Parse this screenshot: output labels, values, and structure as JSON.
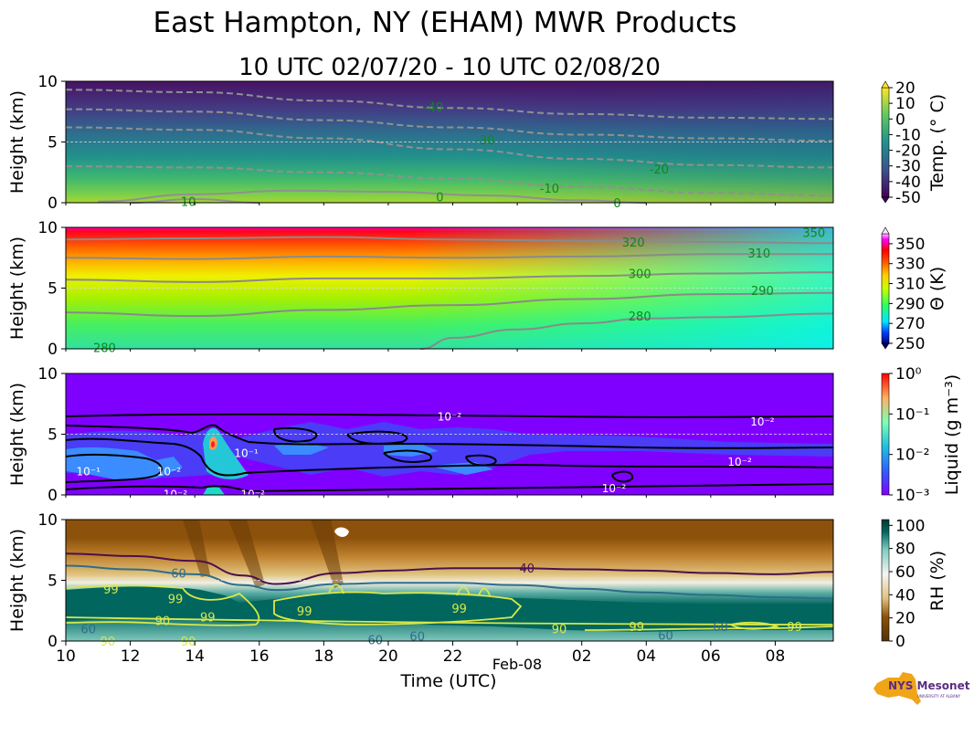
{
  "figure": {
    "title": "East Hampton, NY (EHAM) MWR Products",
    "subtitle": "10 UTC 02/07/20 - 10 UTC 02/08/20",
    "xlabel": "Time (UTC)",
    "date_marker": "Feb-08",
    "logo_text": "NYS Mesonet",
    "logo_subtext": "UNIVERSITY AT ALBANY"
  },
  "chart_data": [
    {
      "type": "heatmap",
      "name": "temperature",
      "ylabel": "Height (km)",
      "ylim": [
        0,
        10
      ],
      "yticks": [
        "0",
        "5",
        "10"
      ],
      "x_range_hours": [
        10,
        33.8
      ],
      "xticks": [
        "10",
        "12",
        "14",
        "16",
        "18",
        "20",
        "22",
        "",
        "02",
        "04",
        "06",
        "08"
      ],
      "xtick_hours": [
        10,
        12,
        14,
        16,
        18,
        20,
        22,
        24,
        26,
        28,
        30,
        32
      ],
      "colorbar": {
        "label": "Temp. (° C)",
        "ticks": [
          "20",
          "10",
          "0",
          "-10",
          "-20",
          "-30",
          "-40",
          "-50"
        ],
        "range": [
          -50,
          20
        ]
      },
      "contour_labels": [
        {
          "text": "-40",
          "t": 21.4,
          "h": 7.9
        },
        {
          "text": "-30",
          "t": 23.0,
          "h": 5.2
        },
        {
          "text": "-20",
          "t": 28.4,
          "h": 2.8
        },
        {
          "text": "-10",
          "t": 25.0,
          "h": 1.2
        },
        {
          "text": "0",
          "t": 21.6,
          "h": 0.5
        },
        {
          "text": "0",
          "t": 27.1,
          "h": 0.0
        },
        {
          "text": "10",
          "t": 13.8,
          "h": 0.1
        }
      ],
      "contours": [
        {
          "value": -40,
          "t": [
            10,
            14,
            18,
            22,
            26,
            30,
            33.8
          ],
          "h": [
            9.3,
            9.1,
            8.4,
            7.8,
            7.3,
            7.0,
            6.9
          ]
        },
        {
          "value": -30,
          "t": [
            10,
            14,
            18,
            22,
            26,
            30,
            33.8
          ],
          "h": [
            7.7,
            7.5,
            6.8,
            6.2,
            5.6,
            5.3,
            5.1
          ]
        },
        {
          "value": -20,
          "t": [
            10,
            14,
            18,
            22,
            26,
            30,
            33.8
          ],
          "h": [
            6.2,
            6.0,
            5.3,
            4.4,
            3.6,
            3.1,
            2.9
          ]
        },
        {
          "value": -10,
          "t": [
            10,
            14,
            18,
            22,
            26,
            30,
            33.8
          ],
          "h": [
            3.0,
            2.9,
            2.5,
            2.0,
            1.3,
            0.8,
            0.6
          ]
        },
        {
          "value": 0,
          "t": [
            11,
            14,
            17,
            20,
            23,
            26,
            28
          ],
          "h": [
            0.1,
            0.7,
            1.0,
            0.9,
            0.6,
            0.2,
            0.0
          ]
        },
        {
          "value": 10,
          "t": [
            12,
            14,
            16
          ],
          "h": [
            0.0,
            0.3,
            0.0
          ]
        }
      ]
    },
    {
      "type": "heatmap",
      "name": "potential_temperature",
      "ylabel": "Height (km)",
      "ylim": [
        0,
        10
      ],
      "yticks": [
        "0",
        "5",
        "10"
      ],
      "colorbar": {
        "label": "Θ (K)",
        "ticks": [
          "350",
          "330",
          "310",
          "290",
          "270",
          "250"
        ],
        "range": [
          250,
          360
        ]
      },
      "contour_labels": [
        {
          "text": "350",
          "t": 33.2,
          "h": 9.6
        },
        {
          "text": "320",
          "t": 27.6,
          "h": 8.8
        },
        {
          "text": "310",
          "t": 31.5,
          "h": 7.9
        },
        {
          "text": "300",
          "t": 27.8,
          "h": 6.2
        },
        {
          "text": "290",
          "t": 31.6,
          "h": 4.8
        },
        {
          "text": "280",
          "t": 27.8,
          "h": 2.7
        },
        {
          "text": "280",
          "t": 11.2,
          "h": 0.1
        }
      ],
      "contours": [
        {
          "value": 320,
          "t": [
            10,
            14,
            18,
            22,
            26,
            30,
            33.8
          ],
          "h": [
            9.0,
            9.1,
            9.2,
            9.0,
            8.9,
            8.8,
            8.7
          ]
        },
        {
          "value": 310,
          "t": [
            10,
            14,
            18,
            22,
            26,
            30,
            33.8
          ],
          "h": [
            7.5,
            7.4,
            7.6,
            7.5,
            7.6,
            7.8,
            7.8
          ]
        },
        {
          "value": 300,
          "t": [
            10,
            14,
            18,
            22,
            26,
            30,
            33.8
          ],
          "h": [
            5.7,
            5.5,
            5.8,
            5.8,
            6.0,
            6.2,
            6.3
          ]
        },
        {
          "value": 290,
          "t": [
            10,
            14,
            18,
            22,
            26,
            30,
            33.8
          ],
          "h": [
            3.0,
            2.7,
            3.2,
            3.6,
            4.1,
            4.5,
            4.6
          ]
        },
        {
          "value": 280,
          "t": [
            21,
            22,
            24,
            26,
            28,
            30,
            33.8
          ],
          "h": [
            0.0,
            0.9,
            1.6,
            2.1,
            2.5,
            2.6,
            2.9
          ]
        }
      ]
    },
    {
      "type": "heatmap",
      "name": "liquid_water",
      "ylabel": "Height (km)",
      "ylim": [
        0,
        10
      ],
      "yticks": [
        "0",
        "5",
        "10"
      ],
      "colorbar": {
        "label": "Liquid (g m⁻³)",
        "ticks": [
          "10⁰",
          "10⁻¹",
          "10⁻²",
          "10⁻³"
        ],
        "range": [
          -3,
          0
        ],
        "scale": "log"
      },
      "contour_labels": [
        {
          "text": "10⁻²",
          "t": 21.9,
          "h": 6.5
        },
        {
          "text": "10⁻²",
          "t": 31.6,
          "h": 6.1
        },
        {
          "text": "10⁻²",
          "t": 30.9,
          "h": 2.8
        },
        {
          "text": "10⁻²",
          "t": 27.0,
          "h": 0.6
        },
        {
          "text": "10⁻¹",
          "t": 10.7,
          "h": 2.0
        },
        {
          "text": "10⁻²",
          "t": 13.2,
          "h": 2.0
        },
        {
          "text": "10⁻¹",
          "t": 15.6,
          "h": 3.5
        },
        {
          "text": "10⁻²",
          "t": 13.4,
          "h": 0.1
        },
        {
          "text": "10⁻²",
          "t": 15.8,
          "h": 0.1
        }
      ]
    },
    {
      "type": "heatmap",
      "name": "relative_humidity",
      "ylabel": "Height (km)",
      "ylim": [
        0,
        10
      ],
      "yticks": [
        "0",
        "5",
        "10"
      ],
      "colorbar": {
        "label": "RH (%)",
        "ticks": [
          "100",
          "80",
          "60",
          "40",
          "20",
          "0"
        ],
        "range": [
          0,
          105
        ]
      },
      "contour_labels": [
        {
          "text": "40",
          "t": 24.3,
          "h": 6.0
        },
        {
          "text": "60",
          "t": 13.5,
          "h": 5.6
        },
        {
          "text": "99",
          "t": 11.4,
          "h": 4.3
        },
        {
          "text": "99",
          "t": 13.4,
          "h": 3.5
        },
        {
          "text": "99",
          "t": 14.4,
          "h": 2.0
        },
        {
          "text": "90",
          "t": 13.0,
          "h": 1.7
        },
        {
          "text": "99",
          "t": 17.4,
          "h": 2.5
        },
        {
          "text": "99",
          "t": 22.2,
          "h": 2.7
        },
        {
          "text": "90",
          "t": 25.3,
          "h": 1.0
        },
        {
          "text": "99",
          "t": 27.7,
          "h": 1.2
        },
        {
          "text": "60",
          "t": 28.6,
          "h": 0.5
        },
        {
          "text": "99",
          "t": 32.6,
          "h": 1.2
        },
        {
          "text": "60",
          "t": 10.7,
          "h": 1.0
        },
        {
          "text": "90",
          "t": 11.3,
          "h": 0.0
        },
        {
          "text": "90",
          "t": 13.8,
          "h": 0.0
        },
        {
          "text": "60",
          "t": 19.6,
          "h": 0.1
        },
        {
          "text": "60",
          "t": 20.9,
          "h": 0.4
        },
        {
          "text": "60",
          "t": 30.3,
          "h": 1.2
        }
      ],
      "contours": [
        {
          "value": 40,
          "t": [
            10,
            12,
            14,
            15.5,
            16.5,
            18.5,
            20,
            22,
            24,
            26,
            28,
            30,
            32,
            33.8
          ],
          "h": [
            7.2,
            7.0,
            6.6,
            5.4,
            4.7,
            5.6,
            5.8,
            6.0,
            6.0,
            5.9,
            5.8,
            5.6,
            5.5,
            5.7
          ]
        },
        {
          "value": 60,
          "t": [
            10,
            12,
            14,
            15.5,
            16.5,
            18.5,
            20,
            22,
            24,
            26,
            28,
            30,
            32,
            33.8
          ],
          "h": [
            6.2,
            5.9,
            5.5,
            4.6,
            4.2,
            4.7,
            4.8,
            4.8,
            4.6,
            4.3,
            4.0,
            3.8,
            3.6,
            3.5
          ]
        }
      ]
    }
  ]
}
